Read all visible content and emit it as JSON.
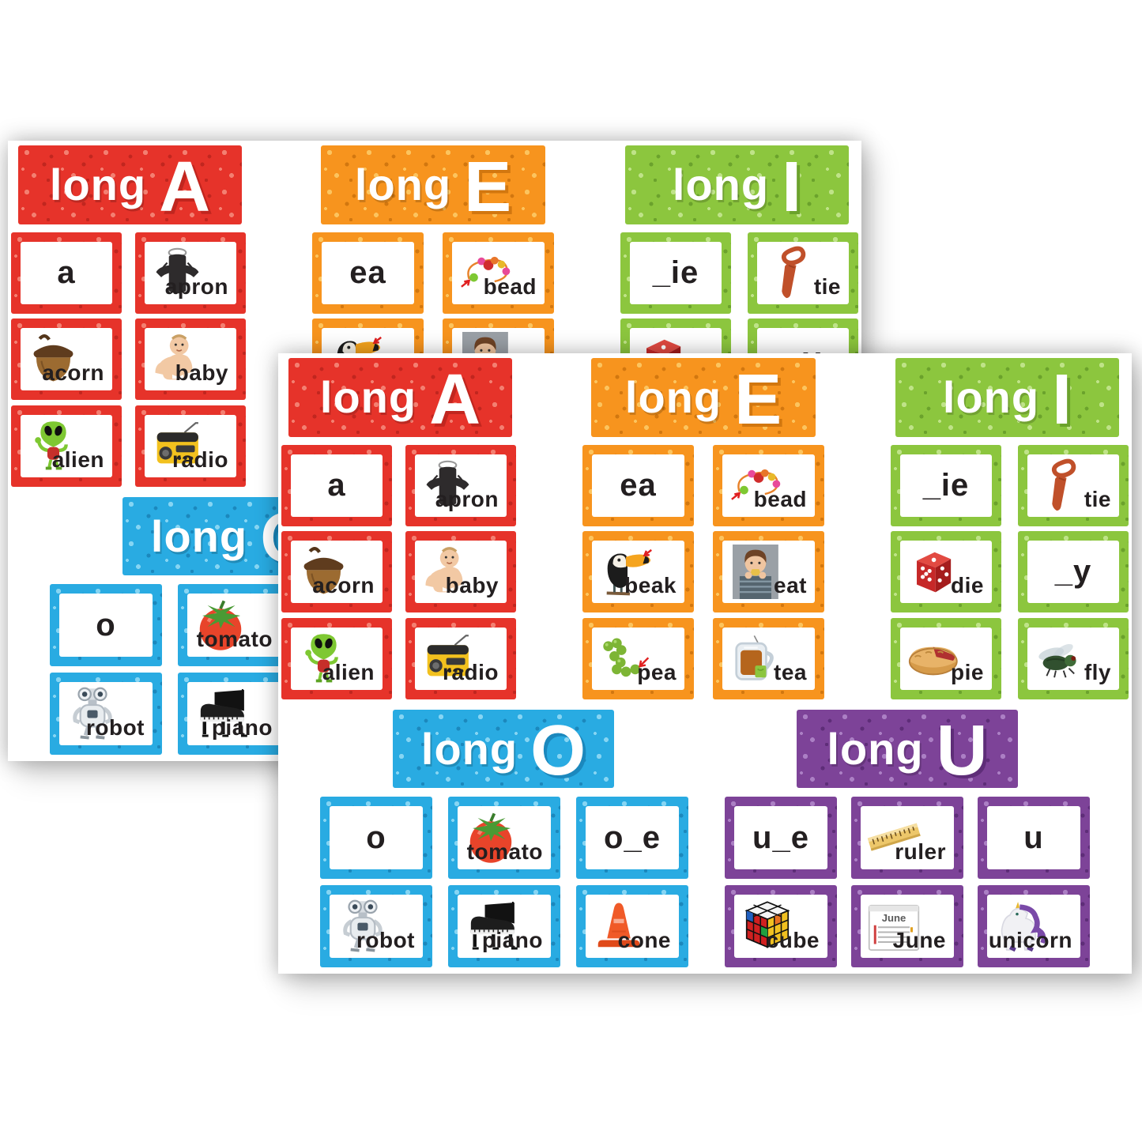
{
  "image_kind": "product-photo-of-two-identical-card-sheets",
  "sheet_count": 2,
  "colors": {
    "background": "#ffffff",
    "card_face": "#ffffff",
    "word_text": "#231f20",
    "header_text": "#ffffff",
    "long_a_red": "#e6332a",
    "long_e_orange": "#f7941e",
    "long_i_green": "#8cc63e",
    "long_o_blue": "#29abe2",
    "long_u_purple": "#7d4398"
  },
  "product": {
    "sections": [
      {
        "id": "long-a",
        "color_key": "red",
        "header": {
          "word": "long",
          "letter": "A"
        },
        "grid": {
          "columns": 2,
          "rows": 3
        },
        "cards": [
          {
            "word": "a"
          },
          {
            "word": "apron",
            "icon": "apron-icon"
          },
          {
            "word": "acorn",
            "icon": "acorn-icon"
          },
          {
            "word": "baby",
            "icon": "baby-icon"
          },
          {
            "word": "alien",
            "icon": "alien-icon"
          },
          {
            "word": "radio",
            "icon": "radio-icon"
          }
        ]
      },
      {
        "id": "long-e",
        "color_key": "orange",
        "header": {
          "word": "long",
          "letter": "E"
        },
        "grid": {
          "columns": 2,
          "rows": 3
        },
        "cards": [
          {
            "word": "ea"
          },
          {
            "word": "bead",
            "icon": "bead-icon"
          },
          {
            "word": "beak",
            "icon": "toucan-beak-icon"
          },
          {
            "word": "eat",
            "icon": "eating-girl-icon"
          },
          {
            "word": "pea",
            "icon": "peas-icon"
          },
          {
            "word": "tea",
            "icon": "tea-icon"
          }
        ]
      },
      {
        "id": "long-i",
        "color_key": "green",
        "header": {
          "word": "long",
          "letter": "I"
        },
        "grid": {
          "columns": 2,
          "rows": 3
        },
        "cards": [
          {
            "word": "_ie"
          },
          {
            "word": "tie",
            "icon": "tie-icon"
          },
          {
            "word": "die",
            "icon": "die-icon"
          },
          {
            "word": "_y"
          },
          {
            "word": "pie",
            "icon": "pie-icon"
          },
          {
            "word": "fly",
            "icon": "fly-icon"
          }
        ]
      },
      {
        "id": "long-o",
        "color_key": "blue",
        "header": {
          "word": "long",
          "letter": "O"
        },
        "grid": {
          "columns": 3,
          "rows": 2
        },
        "cards": [
          {
            "word": "o"
          },
          {
            "word": "tomato",
            "icon": "tomato-icon"
          },
          {
            "word": "o_e"
          },
          {
            "word": "robot",
            "icon": "robot-icon"
          },
          {
            "word": "piano",
            "icon": "piano-icon"
          },
          {
            "word": "cone",
            "icon": "cone-icon"
          }
        ]
      },
      {
        "id": "long-u",
        "color_key": "purple",
        "header": {
          "word": "long",
          "letter": "U"
        },
        "grid": {
          "columns": 3,
          "rows": 2
        },
        "cards": [
          {
            "word": "u_e"
          },
          {
            "word": "ruler",
            "icon": "ruler-icon"
          },
          {
            "word": "u"
          },
          {
            "word": "cube",
            "icon": "rubiks-cube-icon"
          },
          {
            "word": "June",
            "icon": "june-calendar-icon",
            "icon_label": "June"
          },
          {
            "word": "unicorn",
            "icon": "unicorn-icon"
          }
        ]
      }
    ]
  }
}
